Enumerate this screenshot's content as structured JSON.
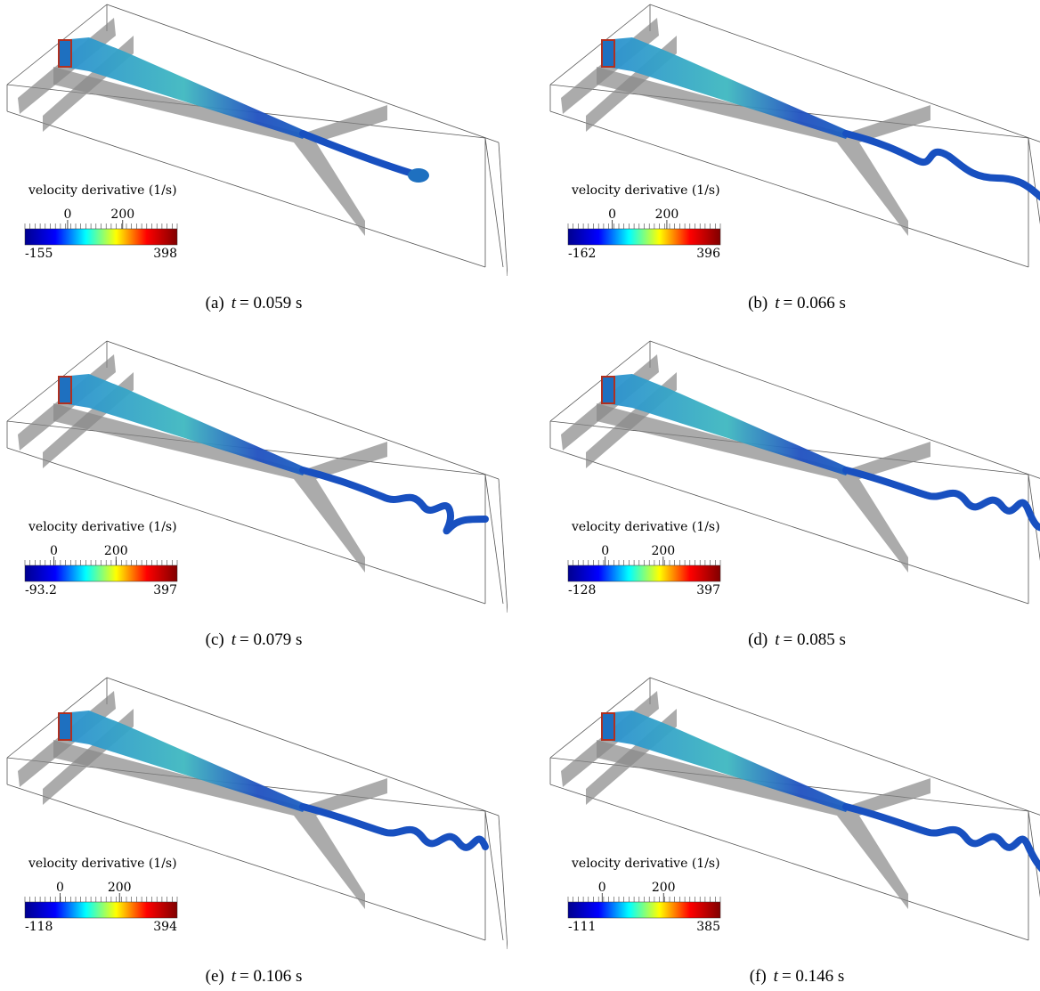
{
  "panels": [
    {
      "label": "(a)",
      "symbol": "t",
      "time": "= 0.059 s",
      "colorbar": {
        "title": "velocity derivative (1/s)",
        "min": -155,
        "max": 398,
        "ticks": [
          0,
          200
        ],
        "min_label": "-155",
        "max_label": "398"
      }
    },
    {
      "label": "(b)",
      "symbol": "t",
      "time": "= 0.066 s",
      "colorbar": {
        "title": "velocity derivative (1/s)",
        "min": -162,
        "max": 396,
        "ticks": [
          0,
          200
        ],
        "min_label": "-162",
        "max_label": "396"
      }
    },
    {
      "label": "(c)",
      "symbol": "t",
      "time": "= 0.079 s",
      "colorbar": {
        "title": "velocity derivative (1/s)",
        "min": -93.2,
        "max": 397,
        "ticks": [
          0,
          200
        ],
        "min_label": "-93.2",
        "max_label": "397"
      }
    },
    {
      "label": "(d)",
      "symbol": "t",
      "time": "= 0.085 s",
      "colorbar": {
        "title": "velocity derivative (1/s)",
        "min": -128,
        "max": 397,
        "ticks": [
          0,
          200
        ],
        "min_label": "-128",
        "max_label": "397"
      }
    },
    {
      "label": "(e)",
      "symbol": "t",
      "time": "= 0.106 s",
      "colorbar": {
        "title": "velocity derivative (1/s)",
        "min": -118,
        "max": 394,
        "ticks": [
          0,
          200
        ],
        "min_label": "-118",
        "max_label": "394"
      }
    },
    {
      "label": "(f)",
      "symbol": "t",
      "time": "= 0.146 s",
      "colorbar": {
        "title": "velocity derivative (1/s)",
        "min": -111,
        "max": 385,
        "ticks": [
          0,
          200
        ],
        "min_label": "-111",
        "max_label": "385"
      }
    }
  ]
}
